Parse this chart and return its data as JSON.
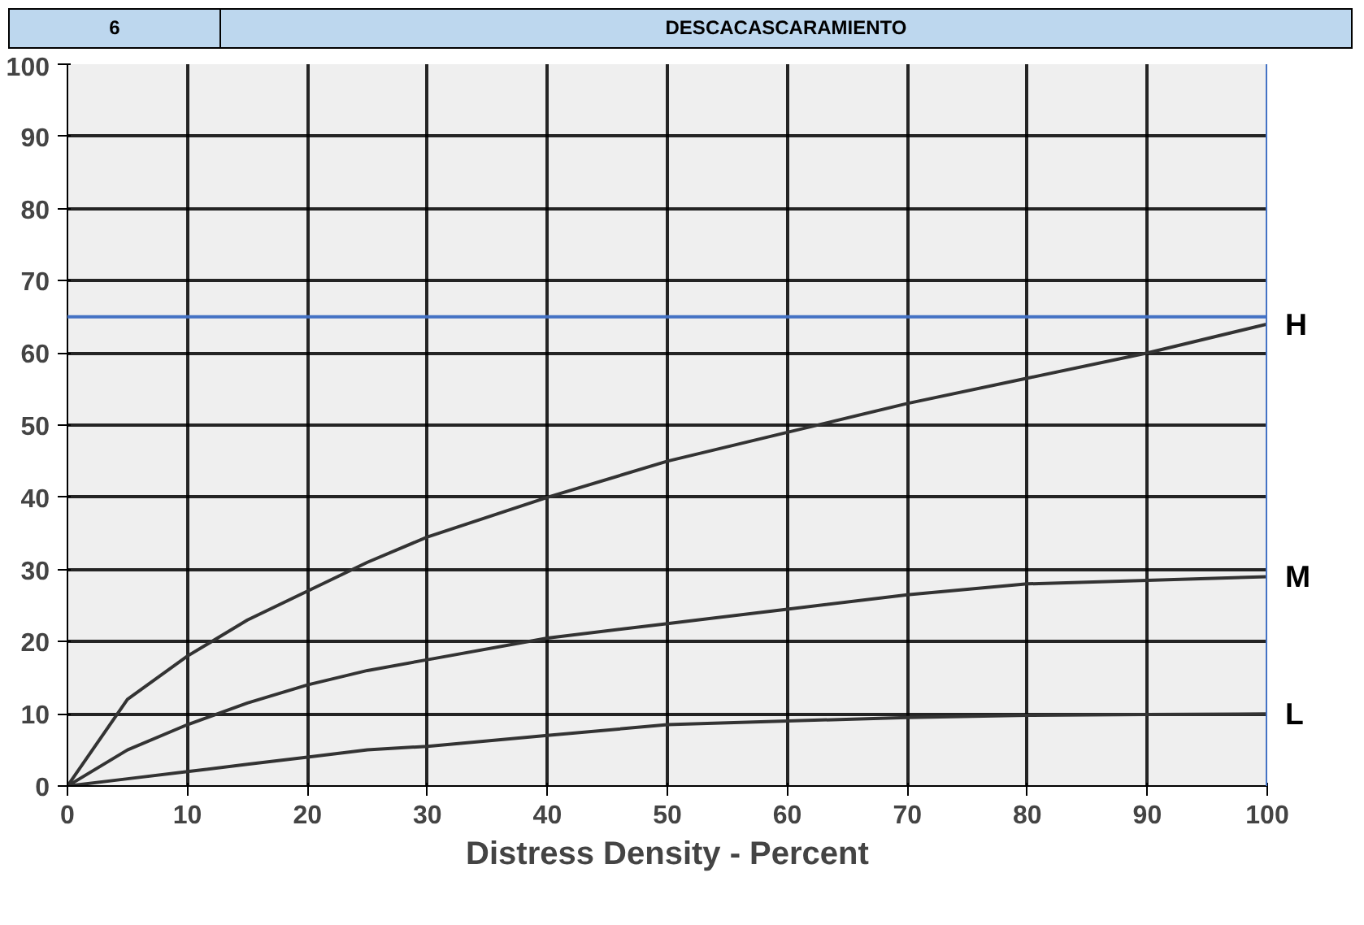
{
  "chart_data": {
    "type": "line",
    "title": "DESCACASCARAMIENTO",
    "annotations": [
      "6"
    ],
    "xlabel": "Distress Density - Percent",
    "xlim": [
      0,
      100
    ],
    "ylim": [
      0,
      100
    ],
    "xticks": [
      0,
      10,
      20,
      30,
      40,
      50,
      60,
      70,
      80,
      90,
      100
    ],
    "yticks": [
      0,
      10,
      20,
      30,
      40,
      50,
      60,
      70,
      80,
      90,
      100
    ],
    "grid": true,
    "marker": "none",
    "line_style": "solid",
    "x": [
      0,
      5,
      10,
      15,
      20,
      25,
      30,
      40,
      50,
      60,
      70,
      80,
      90,
      100
    ],
    "series": [
      {
        "name": "H",
        "color": "#333333",
        "values": [
          0,
          12,
          18,
          23,
          27,
          31,
          34.5,
          40,
          45,
          49,
          53,
          56.5,
          60,
          64
        ]
      },
      {
        "name": "M",
        "color": "#333333",
        "values": [
          0,
          5,
          8.5,
          11.5,
          14,
          16,
          17.5,
          20.5,
          22.5,
          24.5,
          26.5,
          28,
          28.5,
          29
        ]
      },
      {
        "name": "L",
        "color": "#333333",
        "values": [
          0,
          1,
          2,
          3,
          4,
          5,
          5.5,
          7,
          8.5,
          9,
          9.5,
          9.8,
          9.9,
          10
        ]
      }
    ],
    "ref_lines": [
      {
        "axis": "y",
        "value": 65,
        "color": "#4472c4"
      },
      {
        "axis": "x",
        "value": 100,
        "color": "#4472c4"
      }
    ]
  }
}
